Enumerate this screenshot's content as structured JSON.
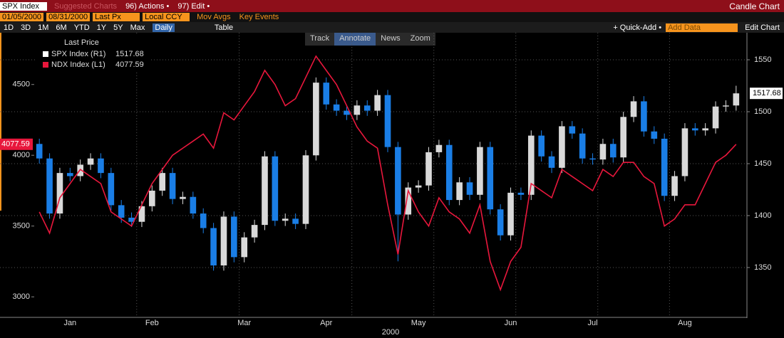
{
  "toolbar": {
    "ticker": "SPX Index",
    "suggested": "Suggested Charts",
    "actions": "96) Actions •",
    "edit": "97) Edit •",
    "chart_type": "Candle Chart"
  },
  "settings": {
    "start_date": "01/05/2000",
    "end_date": "08/31/2000",
    "field": "Last Px",
    "currency": "Local CCY",
    "mov_avgs": "Mov Avgs",
    "key_events": "Key Events"
  },
  "periods": [
    "1D",
    "3D",
    "1M",
    "6M",
    "YTD",
    "1Y",
    "5Y",
    "Max"
  ],
  "frequency": "Daily",
  "table": "Table",
  "quick_add": "+ Quick-Add •",
  "add_data": "Add Data",
  "edit_chart": "Edit Chart",
  "chart_tools": [
    "Track",
    "Annotate",
    "News",
    "Zoom"
  ],
  "chart_data": {
    "type": "candlestick",
    "legend_title": "Last Price",
    "x_label": "2000",
    "categories": [
      null,
      null,
      null,
      "Jan",
      null,
      null,
      null,
      null,
      null,
      null,
      null,
      "Feb",
      null,
      null,
      null,
      null,
      null,
      null,
      null,
      null,
      "Mar",
      null,
      null,
      null,
      null,
      null,
      null,
      null,
      "Apr",
      null,
      null,
      null,
      null,
      null,
      null,
      null,
      null,
      "May",
      null,
      null,
      null,
      null,
      null,
      null,
      null,
      null,
      "Jun",
      null,
      null,
      null,
      null,
      null,
      null,
      null,
      "Jul",
      null,
      null,
      null,
      null,
      null,
      null,
      null,
      null,
      "Aug",
      null,
      null,
      null,
      null,
      null
    ],
    "series": [
      {
        "name": "SPX Index (R1)",
        "type": "candlestick",
        "axis": "y2",
        "up_color": "#d9d9d9",
        "down_color": "#1a7ee6",
        "last_value": 1517.68,
        "open": [
          1469,
          1455,
          1402,
          1441,
          1438,
          1449,
          1455,
          1441,
          1410,
          1398,
          1394,
          1409,
          1424,
          1441,
          1416,
          1418,
          1402,
          1388,
          1352,
          1399,
          1360,
          1379,
          1391,
          1457,
          1395,
          1397,
          1392,
          1458,
          1528,
          1507,
          1501,
          1497,
          1506,
          1501,
          1516,
          1466,
          1401,
          1427,
          1429,
          1461,
          1468,
          1415,
          1432,
          1420,
          1466,
          1406,
          1381,
          1422,
          1420,
          1477,
          1457,
          1446,
          1486,
          1479,
          1455,
          1454,
          1469,
          1456,
          1495,
          1510,
          1481,
          1474,
          1419,
          1438,
          1484,
          1482,
          1484,
          1505,
          1506
        ],
        "high": [
          1474,
          1460,
          1446,
          1446,
          1454,
          1460,
          1460,
          1446,
          1415,
          1403,
          1414,
          1429,
          1446,
          1446,
          1423,
          1423,
          1407,
          1393,
          1404,
          1404,
          1384,
          1396,
          1462,
          1462,
          1402,
          1402,
          1463,
          1533,
          1533,
          1512,
          1506,
          1511,
          1511,
          1521,
          1521,
          1471,
          1432,
          1434,
          1466,
          1473,
          1473,
          1437,
          1437,
          1471,
          1471,
          1411,
          1427,
          1427,
          1482,
          1482,
          1462,
          1491,
          1491,
          1484,
          1460,
          1474,
          1474,
          1500,
          1515,
          1515,
          1486,
          1479,
          1443,
          1489,
          1489,
          1489,
          1510,
          1511,
          1525
        ],
        "low": [
          1450,
          1397,
          1397,
          1433,
          1433,
          1444,
          1436,
          1405,
          1393,
          1389,
          1389,
          1404,
          1419,
          1411,
          1411,
          1397,
          1383,
          1347,
          1347,
          1355,
          1355,
          1374,
          1386,
          1390,
          1390,
          1387,
          1387,
          1453,
          1502,
          1496,
          1492,
          1492,
          1496,
          1496,
          1461,
          1356,
          1396,
          1422,
          1424,
          1456,
          1410,
          1410,
          1415,
          1415,
          1401,
          1376,
          1376,
          1415,
          1415,
          1452,
          1441,
          1441,
          1474,
          1450,
          1449,
          1449,
          1451,
          1451,
          1490,
          1476,
          1469,
          1414,
          1414,
          1433,
          1477,
          1477,
          1479,
          1500,
          1501
        ],
        "close": [
          1455,
          1402,
          1441,
          1438,
          1449,
          1455,
          1441,
          1410,
          1398,
          1394,
          1409,
          1424,
          1441,
          1416,
          1418,
          1402,
          1388,
          1352,
          1399,
          1360,
          1379,
          1391,
          1457,
          1395,
          1397,
          1392,
          1458,
          1528,
          1507,
          1501,
          1497,
          1506,
          1501,
          1516,
          1466,
          1401,
          1427,
          1429,
          1461,
          1468,
          1415,
          1432,
          1420,
          1466,
          1406,
          1381,
          1422,
          1420,
          1477,
          1457,
          1446,
          1486,
          1479,
          1455,
          1454,
          1469,
          1456,
          1495,
          1510,
          1481,
          1474,
          1419,
          1438,
          1484,
          1482,
          1484,
          1505,
          1506,
          1517.68
        ]
      },
      {
        "name": "NDX Index (L1)",
        "type": "line",
        "axis": "y",
        "color": "#e8173c",
        "last_value": 4077.59,
        "values": [
          3600,
          3450,
          3700,
          3800,
          3900,
          3850,
          3800,
          3600,
          3550,
          3500,
          3650,
          3800,
          3900,
          4000,
          4050,
          4100,
          4150,
          4050,
          4300,
          4250,
          4350,
          4450,
          4600,
          4500,
          4350,
          4400,
          4550,
          4700,
          4600,
          4500,
          4350,
          4200,
          4100,
          4050,
          3650,
          3300,
          3750,
          3600,
          3500,
          3700,
          3600,
          3550,
          3450,
          3650,
          3250,
          3050,
          3250,
          3350,
          3800,
          3750,
          3700,
          3900,
          3850,
          3800,
          3750,
          3900,
          3850,
          3950,
          3950,
          3850,
          3800,
          3500,
          3550,
          3650,
          3650,
          3800,
          3950,
          4000,
          4077.59
        ]
      }
    ],
    "ylim": [
      2860,
      4745
    ],
    "yticks": [
      3000,
      3500,
      4000,
      4500
    ],
    "y2lim": [
      1302.7,
      1559.6
    ],
    "y2ticks": [
      1350,
      1400,
      1450,
      1500,
      1550
    ],
    "grid": true
  }
}
